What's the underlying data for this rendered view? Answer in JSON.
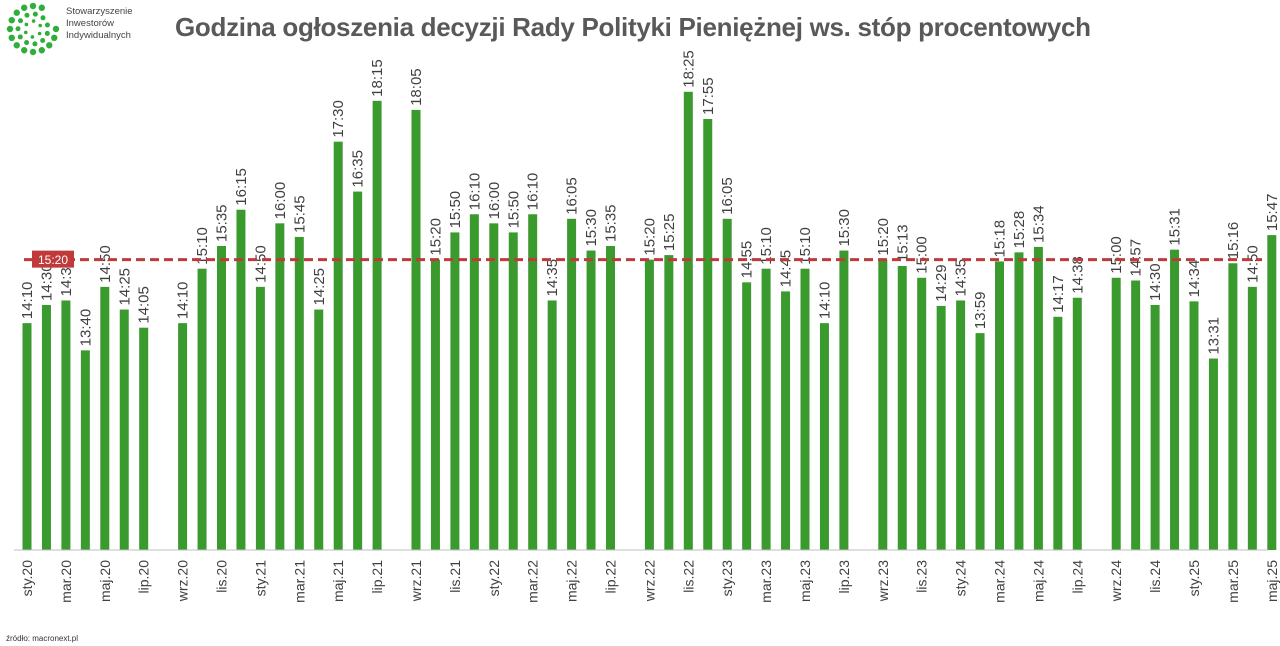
{
  "header": {
    "title": "Godzina ogłoszenia decyzji Rady Polityki Pieniężnej ws. stóp procentowych",
    "logo_lines": [
      "Stowarzyszenie",
      "Inwestorów",
      "Indywidualnych"
    ]
  },
  "source": "źródło: macronext.pl",
  "colors": {
    "bar": "#3a9a2e",
    "average_line": "#c0393b",
    "label": "#404040",
    "logo_green": "#2fae3b"
  },
  "chart_data": {
    "type": "bar",
    "title": "Godzina ogłoszenia decyzji Rady Polityki Pieniężnej ws. stóp procentowych",
    "xlabel": "",
    "ylabel": "",
    "grid": false,
    "average": {
      "label": "15:20"
    },
    "groups": [
      [
        "14:10",
        "14:30",
        "14:35",
        "13:40",
        "14:50",
        "14:25",
        "14:05"
      ],
      [
        "14:10",
        "15:10",
        "15:35",
        "16:15",
        "14:50",
        "16:00",
        "15:45",
        "14:25",
        "17:30",
        "16:35",
        "18:15"
      ],
      [
        "18:05",
        "15:20",
        "15:50",
        "16:10",
        "16:00",
        "15:50",
        "16:10",
        "14:35",
        "16:05",
        "15:30",
        "15:35"
      ],
      [
        "15:20",
        "15:25",
        "18:25",
        "17:55",
        "16:05",
        "14:55",
        "15:10",
        "14:45",
        "15:10",
        "14:10",
        "15:30"
      ],
      [
        "15:20",
        "15:13",
        "15:00",
        "14:29",
        "14:35",
        "13:59",
        "15:18",
        "15:28",
        "15:34",
        "14:17",
        "14:38"
      ],
      [
        "15:00",
        "14:57",
        "14:30",
        "15:31",
        "14:34",
        "13:31",
        "15:16",
        "14:50",
        "15:47"
      ]
    ],
    "tick_labels": [
      "sty.20",
      "mar.20",
      "maj.20",
      "lip.20",
      "wrz.20",
      "lis.20",
      "sty.21",
      "mar.21",
      "maj.21",
      "lip.21",
      "wrz.21",
      "lis.21",
      "sty.22",
      "mar.22",
      "maj.22",
      "lip.22",
      "wrz.22",
      "lis.22",
      "sty.23",
      "mar.23",
      "maj.23",
      "lip.23",
      "wrz.23",
      "lis.23",
      "sty.24",
      "mar.24",
      "maj.24",
      "lip.24",
      "wrz.24",
      "lis.24",
      "sty.25",
      "mar.25",
      "maj.25"
    ],
    "ylim": [
      "10:00",
      "19:00"
    ]
  }
}
